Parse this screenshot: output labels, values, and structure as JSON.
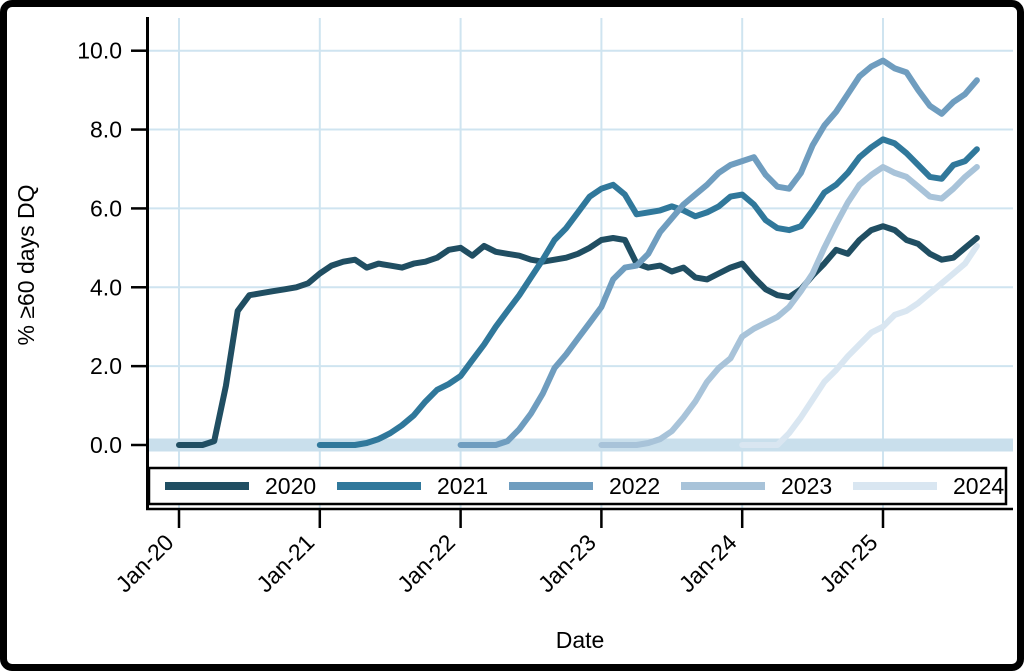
{
  "chart_data": {
    "type": "line",
    "title": "",
    "xlabel": "Date",
    "ylabel": "% ≥60 days DQ",
    "x_unit": "month",
    "x_origin_label": "Jan-20",
    "ylim": [
      0,
      10
    ],
    "grid": true,
    "legend_position": "bottom",
    "y_ticks": [
      {
        "label": "0.0",
        "value": 0
      },
      {
        "label": "2.0",
        "value": 2
      },
      {
        "label": "4.0",
        "value": 4
      },
      {
        "label": "6.0",
        "value": 6
      },
      {
        "label": "8.0",
        "value": 8
      },
      {
        "label": "10.0",
        "value": 10
      }
    ],
    "x_ticks": [
      {
        "label": "Jan-20",
        "month": 0
      },
      {
        "label": "Jan-21",
        "month": 12
      },
      {
        "label": "Jan-22",
        "month": 24
      },
      {
        "label": "Jan-23",
        "month": 36
      },
      {
        "label": "Jan-24",
        "month": 48
      },
      {
        "label": "Jan-25",
        "month": 60
      }
    ],
    "series": [
      {
        "name": "2020",
        "color": "#204e62",
        "start_month": 0,
        "values": [
          0,
          0,
          0,
          0.1,
          1.5,
          3.4,
          3.8,
          3.85,
          3.9,
          3.95,
          4.0,
          4.1,
          4.35,
          4.55,
          4.65,
          4.7,
          4.5,
          4.6,
          4.55,
          4.5,
          4.6,
          4.65,
          4.75,
          4.95,
          5.0,
          4.8,
          5.05,
          4.9,
          4.85,
          4.8,
          4.7,
          4.65,
          4.7,
          4.75,
          4.85,
          5.0,
          5.2,
          5.25,
          5.2,
          4.6,
          4.5,
          4.55,
          4.4,
          4.5,
          4.25,
          4.2,
          4.35,
          4.5,
          4.6,
          4.25,
          3.95,
          3.8,
          3.75,
          3.95,
          4.3,
          4.6,
          4.95,
          4.85,
          5.2,
          5.45,
          5.55,
          5.45,
          5.2,
          5.1,
          4.85,
          4.7,
          4.75,
          5.0,
          5.25
        ]
      },
      {
        "name": "2021",
        "color": "#30789b",
        "start_month": 12,
        "values": [
          0,
          0,
          0,
          0,
          0.05,
          0.15,
          0.3,
          0.5,
          0.75,
          1.1,
          1.4,
          1.55,
          1.75,
          2.15,
          2.55,
          3.0,
          3.4,
          3.8,
          4.25,
          4.7,
          5.2,
          5.5,
          5.9,
          6.3,
          6.5,
          6.6,
          6.35,
          5.85,
          5.9,
          5.95,
          6.05,
          5.95,
          5.8,
          5.9,
          6.05,
          6.3,
          6.35,
          6.1,
          5.7,
          5.5,
          5.45,
          5.55,
          5.95,
          6.4,
          6.6,
          6.9,
          7.3,
          7.55,
          7.75,
          7.65,
          7.4,
          7.1,
          6.8,
          6.75,
          7.1,
          7.2,
          7.5
        ]
      },
      {
        "name": "2022",
        "color": "#6f9dbf",
        "start_month": 24,
        "values": [
          0,
          0,
          0,
          0,
          0.1,
          0.4,
          0.8,
          1.3,
          1.95,
          2.3,
          2.7,
          3.1,
          3.5,
          4.2,
          4.5,
          4.55,
          4.85,
          5.4,
          5.75,
          6.1,
          6.35,
          6.6,
          6.9,
          7.1,
          7.2,
          7.3,
          6.85,
          6.55,
          6.5,
          6.9,
          7.6,
          8.1,
          8.45,
          8.9,
          9.35,
          9.6,
          9.75,
          9.55,
          9.45,
          9.0,
          8.6,
          8.4,
          8.7,
          8.9,
          9.25
        ]
      },
      {
        "name": "2023",
        "color": "#a8c3d9",
        "start_month": 36,
        "values": [
          0,
          0,
          0,
          0,
          0.05,
          0.15,
          0.35,
          0.7,
          1.1,
          1.6,
          1.95,
          2.2,
          2.75,
          2.95,
          3.1,
          3.25,
          3.5,
          3.9,
          4.35,
          5.0,
          5.6,
          6.15,
          6.6,
          6.85,
          7.05,
          6.9,
          6.8,
          6.55,
          6.3,
          6.25,
          6.5,
          6.8,
          7.05
        ]
      },
      {
        "name": "2024",
        "color": "#d9e6f1",
        "start_month": 48,
        "values": [
          0,
          0,
          0,
          0,
          0.3,
          0.7,
          1.15,
          1.6,
          1.9,
          2.25,
          2.55,
          2.85,
          3.0,
          3.3,
          3.4,
          3.6,
          3.85,
          4.1,
          4.35,
          4.6,
          5.05
        ]
      }
    ],
    "legend_items": [
      "2020",
      "2021",
      "2022",
      "2023",
      "2024"
    ]
  },
  "colors": {
    "grid": "#cfe4f0",
    "zero_band": "#c9dfec",
    "axis": "#000000",
    "text": "#000000",
    "background": "#ffffff",
    "frame": "#000000",
    "legend_border": "#000000"
  }
}
